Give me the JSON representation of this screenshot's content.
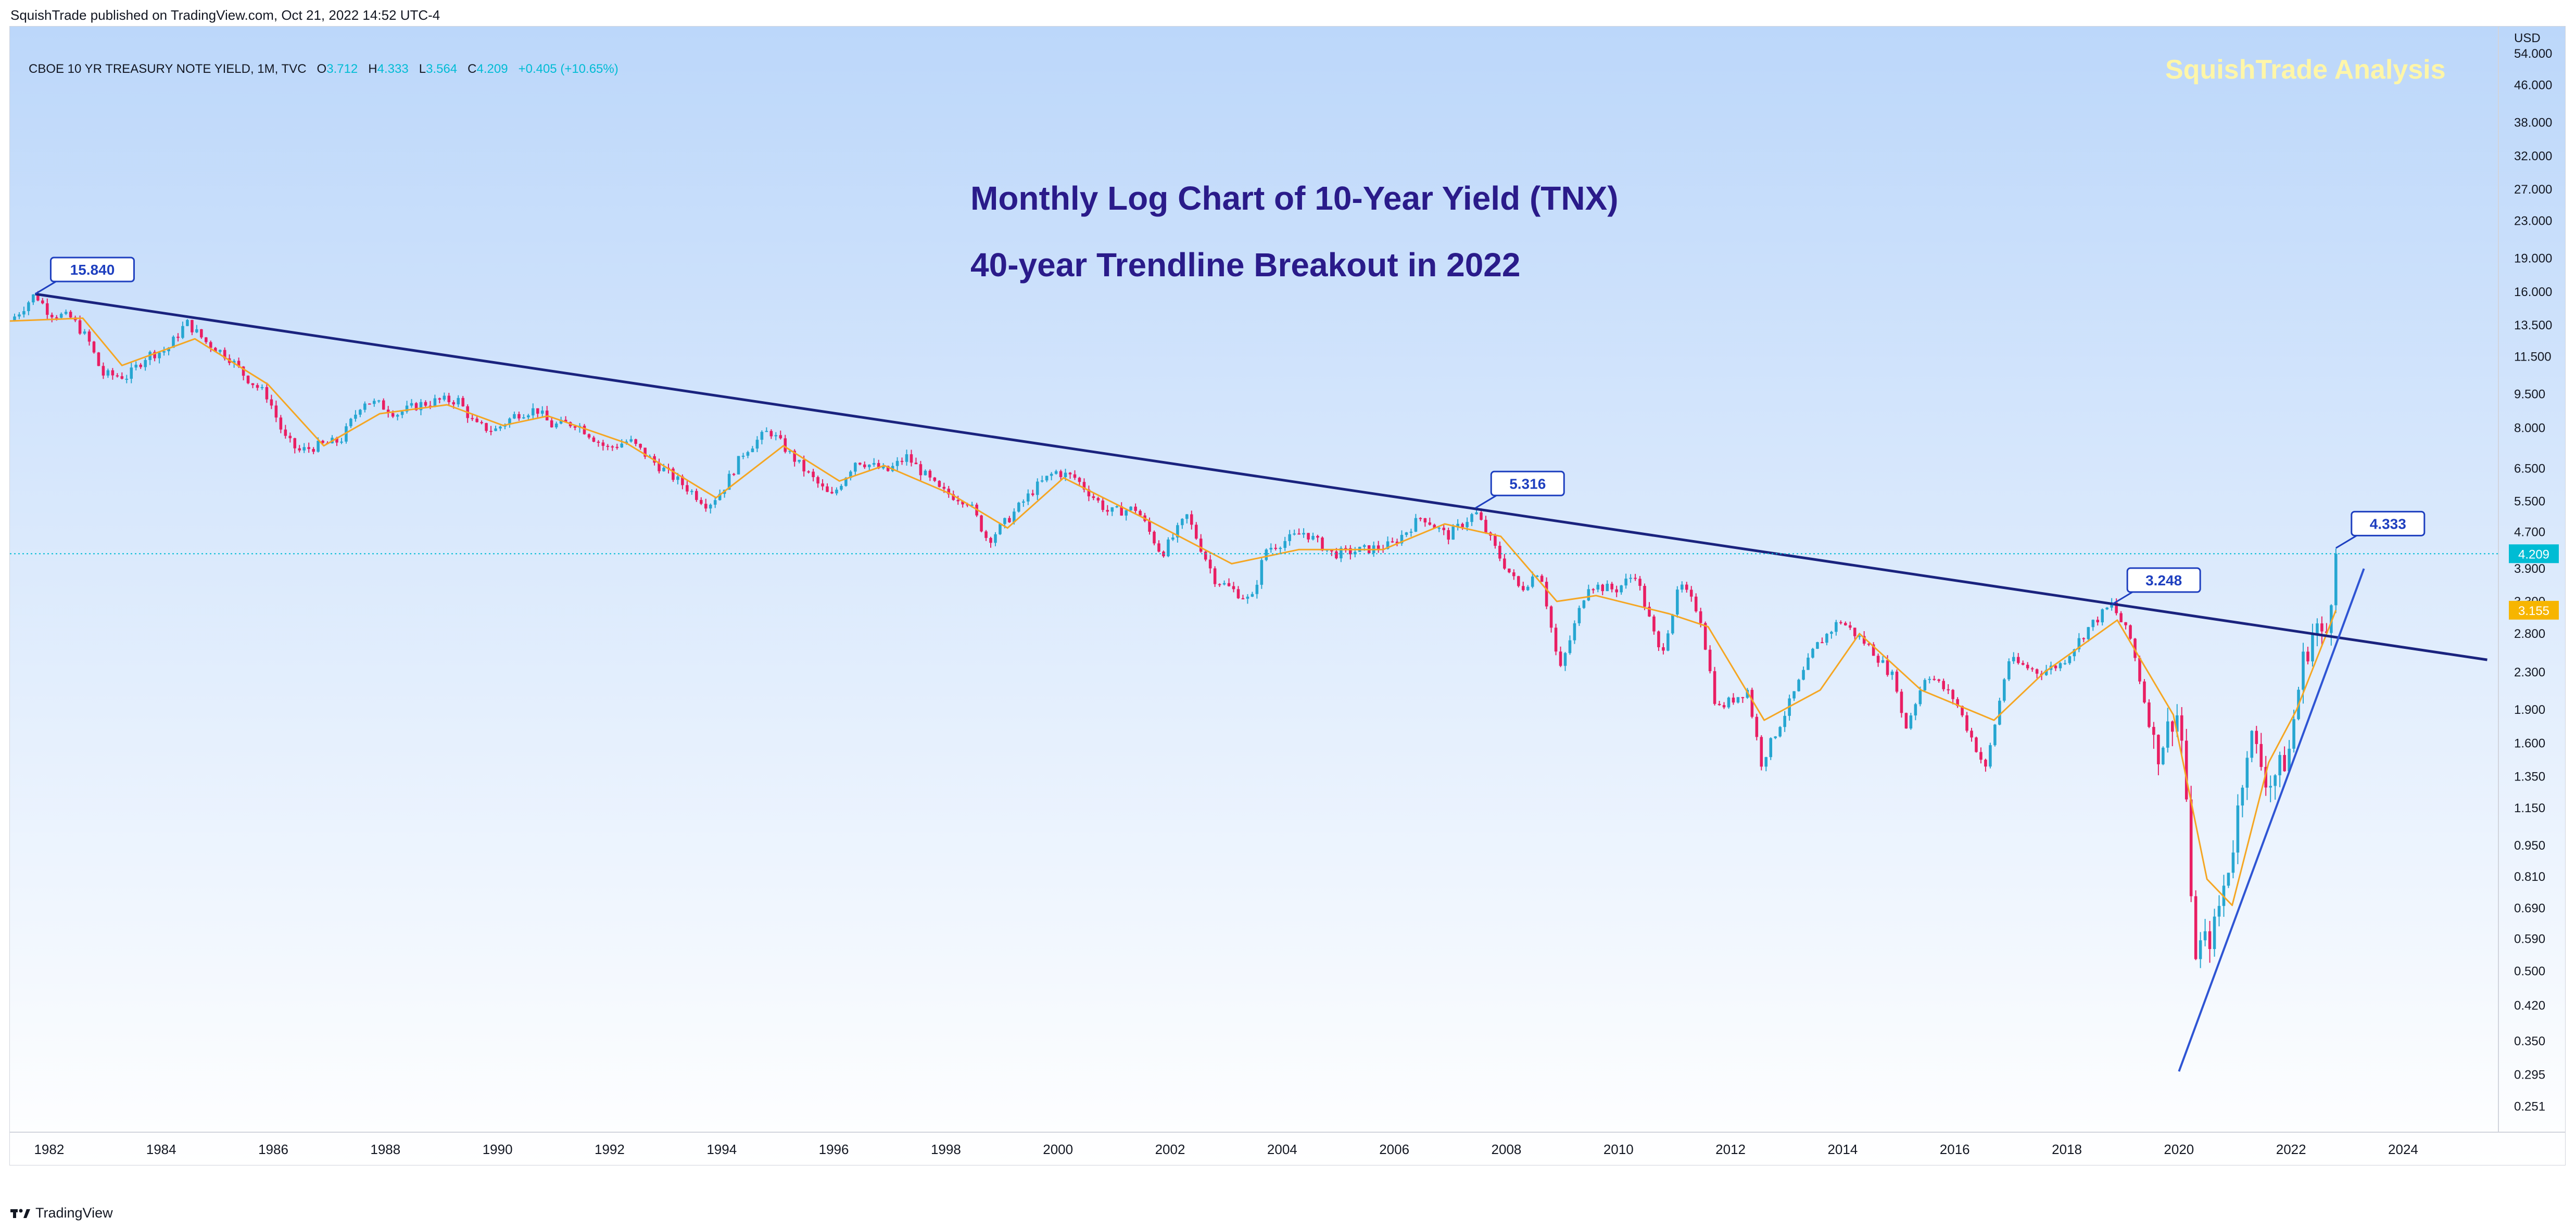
{
  "header": {
    "published": "SquishTrade published on TradingView.com, Oct 21, 2022 14:52 UTC-4"
  },
  "legend": {
    "symbol": "CBOE 10 YR TREASURY NOTE YIELD, 1M, TVC",
    "o_label": "O",
    "o": "3.712",
    "h_label": "H",
    "h": "4.333",
    "l_label": "L",
    "l": "3.564",
    "c_label": "C",
    "c": "4.209",
    "change": "+0.405 (+10.65%)"
  },
  "watermark": "SquishTrade Analysis",
  "footer": {
    "brand": "TradingView"
  },
  "colors": {
    "up": "#26a6d1",
    "down": "#e91e63",
    "ma": "#f5a623",
    "trendline": "#1a237e",
    "support": "#2f55d4",
    "title": "#2a1b8a",
    "background_top": "#bcd7fa",
    "background_bottom": "#ffffff",
    "watermark": "#fff6a8",
    "price_badge": "#00bcd4",
    "ma_badge": "#f7b500"
  },
  "chart_data": {
    "type": "candlestick",
    "title": "Monthly Log Chart of 10-Year Yield (TNX)",
    "subtitle": "40-year Trendline Breakout in 2022",
    "y_unit": "USD",
    "y_scale": "log",
    "ylim": [
      0.22,
      62
    ],
    "xlim": [
      1981.3,
      2025.7
    ],
    "x_ticks": [
      "1982",
      "1984",
      "1986",
      "1988",
      "1990",
      "1992",
      "1994",
      "1996",
      "1998",
      "2000",
      "2002",
      "2004",
      "2006",
      "2008",
      "2010",
      "2012",
      "2014",
      "2016",
      "2018",
      "2020",
      "2022",
      "2024"
    ],
    "y_ticks": [
      "54.000",
      "46.000",
      "38.000",
      "32.000",
      "27.000",
      "23.000",
      "19.000",
      "16.000",
      "13.500",
      "11.500",
      "9.500",
      "8.000",
      "6.500",
      "5.500",
      "4.700",
      "3.900",
      "3.300",
      "2.800",
      "2.300",
      "1.900",
      "1.600",
      "1.350",
      "1.150",
      "0.950",
      "0.810",
      "0.690",
      "0.590",
      "0.500",
      "0.420",
      "0.350",
      "0.295",
      "0.251"
    ],
    "path_points": [
      [
        1981.3,
        13.8
      ],
      [
        1981.5,
        14.6
      ],
      [
        1981.75,
        15.84
      ],
      [
        1982.0,
        14.4
      ],
      [
        1982.4,
        14.0
      ],
      [
        1982.7,
        12.5
      ],
      [
        1982.95,
        10.5
      ],
      [
        1983.4,
        10.4
      ],
      [
        1983.75,
        11.6
      ],
      [
        1984.1,
        11.9
      ],
      [
        1984.45,
        13.7
      ],
      [
        1984.8,
        12.4
      ],
      [
        1985.2,
        11.5
      ],
      [
        1985.5,
        10.4
      ],
      [
        1985.9,
        9.4
      ],
      [
        1986.2,
        7.6
      ],
      [
        1986.45,
        7.1
      ],
      [
        1986.8,
        7.3
      ],
      [
        1987.2,
        7.5
      ],
      [
        1987.6,
        9.2
      ],
      [
        1987.9,
        9.0
      ],
      [
        1988.2,
        8.6
      ],
      [
        1988.6,
        9.0
      ],
      [
        1988.95,
        9.2
      ],
      [
        1989.3,
        9.2
      ],
      [
        1989.6,
        8.1
      ],
      [
        1989.95,
        7.9
      ],
      [
        1990.35,
        8.6
      ],
      [
        1990.7,
        8.8
      ],
      [
        1990.95,
        8.1
      ],
      [
        1991.4,
        8.2
      ],
      [
        1991.95,
        7.2
      ],
      [
        1992.35,
        7.5
      ],
      [
        1992.8,
        6.7
      ],
      [
        1993.3,
        6.0
      ],
      [
        1993.75,
        5.4
      ],
      [
        1994.0,
        5.8
      ],
      [
        1994.4,
        7.1
      ],
      [
        1994.85,
        7.9
      ],
      [
        1995.4,
        6.6
      ],
      [
        1995.95,
        5.6
      ],
      [
        1996.4,
        6.8
      ],
      [
        1996.95,
        6.4
      ],
      [
        1997.3,
        6.9
      ],
      [
        1997.9,
        5.8
      ],
      [
        1998.4,
        5.5
      ],
      [
        1998.75,
        4.5
      ],
      [
        1999.1,
        5.0
      ],
      [
        1999.6,
        5.9
      ],
      [
        1999.95,
        6.4
      ],
      [
        2000.3,
        6.2
      ],
      [
        2000.9,
        5.2
      ],
      [
        2001.4,
        5.3
      ],
      [
        2001.85,
        4.2
      ],
      [
        2002.3,
        5.1
      ],
      [
        2002.8,
        3.7
      ],
      [
        2003.45,
        3.3
      ],
      [
        2003.7,
        4.3
      ],
      [
        2004.4,
        4.7
      ],
      [
        2004.9,
        4.2
      ],
      [
        2005.5,
        4.3
      ],
      [
        2005.95,
        4.4
      ],
      [
        2006.5,
        5.1
      ],
      [
        2006.95,
        4.6
      ],
      [
        2007.45,
        5.2
      ],
      [
        2007.9,
        4.1
      ],
      [
        2008.25,
        3.5
      ],
      [
        2008.6,
        3.9
      ],
      [
        2008.95,
        2.3
      ],
      [
        2009.45,
        3.6
      ],
      [
        2009.95,
        3.5
      ],
      [
        2010.3,
        3.8
      ],
      [
        2010.75,
        2.5
      ],
      [
        2011.1,
        3.6
      ],
      [
        2011.45,
        3.1
      ],
      [
        2011.75,
        1.9
      ],
      [
        2012.3,
        2.1
      ],
      [
        2012.55,
        1.45
      ],
      [
        2013.0,
        1.9
      ],
      [
        2013.5,
        2.6
      ],
      [
        2013.95,
        3.0
      ],
      [
        2014.5,
        2.6
      ],
      [
        2014.95,
        2.2
      ],
      [
        2015.1,
        1.7
      ],
      [
        2015.5,
        2.3
      ],
      [
        2016.0,
        2.0
      ],
      [
        2016.55,
        1.4
      ],
      [
        2016.95,
        2.45
      ],
      [
        2017.5,
        2.3
      ],
      [
        2017.9,
        2.4
      ],
      [
        2018.4,
        2.9
      ],
      [
        2018.8,
        3.25
      ],
      [
        2019.15,
        2.7
      ],
      [
        2019.6,
        1.5
      ],
      [
        2019.95,
        1.9
      ],
      [
        2020.1,
        1.5
      ],
      [
        2020.25,
        0.55
      ],
      [
        2020.6,
        0.6
      ],
      [
        2020.95,
        0.93
      ],
      [
        2021.25,
        1.7
      ],
      [
        2021.6,
        1.3
      ],
      [
        2021.95,
        1.5
      ],
      [
        2022.2,
        2.4
      ],
      [
        2022.45,
        2.95
      ],
      [
        2022.6,
        2.6
      ],
      [
        2022.8,
        4.2
      ]
    ],
    "moving_average": [
      [
        1981.3,
        13.8
      ],
      [
        1982.6,
        14.0
      ],
      [
        1983.3,
        11.0
      ],
      [
        1984.6,
        12.6
      ],
      [
        1985.9,
        10.0
      ],
      [
        1986.9,
        7.3
      ],
      [
        1987.9,
        8.6
      ],
      [
        1989.1,
        9.0
      ],
      [
        1990.1,
        8.1
      ],
      [
        1990.9,
        8.5
      ],
      [
        1992.3,
        7.4
      ],
      [
        1993.9,
        5.6
      ],
      [
        1995.1,
        7.3
      ],
      [
        1996.1,
        6.1
      ],
      [
        1996.9,
        6.6
      ],
      [
        1998.1,
        5.7
      ],
      [
        1999.1,
        4.8
      ],
      [
        2000.1,
        6.2
      ],
      [
        2001.6,
        5.0
      ],
      [
        2003.1,
        4.0
      ],
      [
        2004.3,
        4.3
      ],
      [
        2005.8,
        4.3
      ],
      [
        2006.9,
        4.9
      ],
      [
        2007.9,
        4.6
      ],
      [
        2008.9,
        3.3
      ],
      [
        2009.6,
        3.4
      ],
      [
        2010.9,
        3.1
      ],
      [
        2011.6,
        2.9
      ],
      [
        2012.6,
        1.8
      ],
      [
        2013.6,
        2.1
      ],
      [
        2014.3,
        2.8
      ],
      [
        2015.4,
        2.1
      ],
      [
        2016.7,
        1.8
      ],
      [
        2017.6,
        2.3
      ],
      [
        2018.9,
        3.0
      ],
      [
        2019.9,
        1.85
      ],
      [
        2020.5,
        0.8
      ],
      [
        2020.95,
        0.7
      ],
      [
        2021.6,
        1.45
      ],
      [
        2022.1,
        1.9
      ],
      [
        2022.8,
        3.155
      ]
    ],
    "resistance_trendline": [
      [
        1981.75,
        15.84
      ],
      [
        2025.5,
        2.45
      ]
    ],
    "support_trendline": [
      [
        2020.0,
        0.3
      ],
      [
        2023.3,
        3.9
      ]
    ],
    "annotations": [
      {
        "label": "15.840",
        "x": 1981.75,
        "y": 15.84
      },
      {
        "label": "5.316",
        "x": 2007.45,
        "y": 5.316
      },
      {
        "label": "3.248",
        "x": 2018.8,
        "y": 3.248
      },
      {
        "label": "4.333",
        "x": 2022.8,
        "y": 4.333
      }
    ],
    "last_price": "4.209",
    "ma_value": "3.155"
  }
}
